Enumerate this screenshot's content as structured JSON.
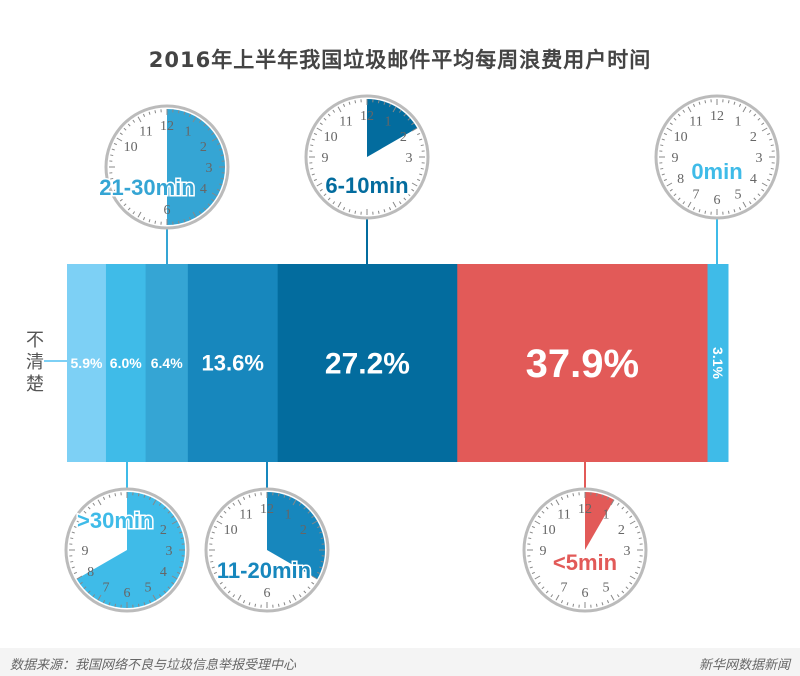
{
  "chart_data": {
    "type": "bar",
    "title": "2016年上半年我国垃圾邮件平均每周浪费用户时间",
    "categories": [
      "不清楚",
      ">30min",
      "21-30min",
      "11-20min",
      "6-10min",
      "<5min",
      "0min"
    ],
    "values": [
      5.9,
      6.0,
      6.4,
      13.6,
      27.2,
      37.9,
      3.1
    ],
    "labels": [
      "5.9%",
      "6.0%",
      "6.4%",
      "13.6%",
      "27.2%",
      "37.9%",
      "3.1%"
    ],
    "colors": [
      "#7dd0f5",
      "#3fbbe8",
      "#35a5d4",
      "#1787bd",
      "#036c9e",
      "#e25a58",
      "#3fbbe8"
    ],
    "clock_fill_hours": [
      null,
      8,
      6,
      4,
      2,
      1,
      0
    ],
    "label_colors": [
      "#555555",
      "#3fbbe8",
      "#35a5d4",
      "#1787bd",
      "#036c9e",
      "#e25a58",
      "#3fbbe8"
    ],
    "stacked": "horizontal-100%"
  },
  "footer": {
    "source": "数据来源：我国网络不良与垃圾信息举报受理中心",
    "brand": "新华网数据新闻"
  }
}
